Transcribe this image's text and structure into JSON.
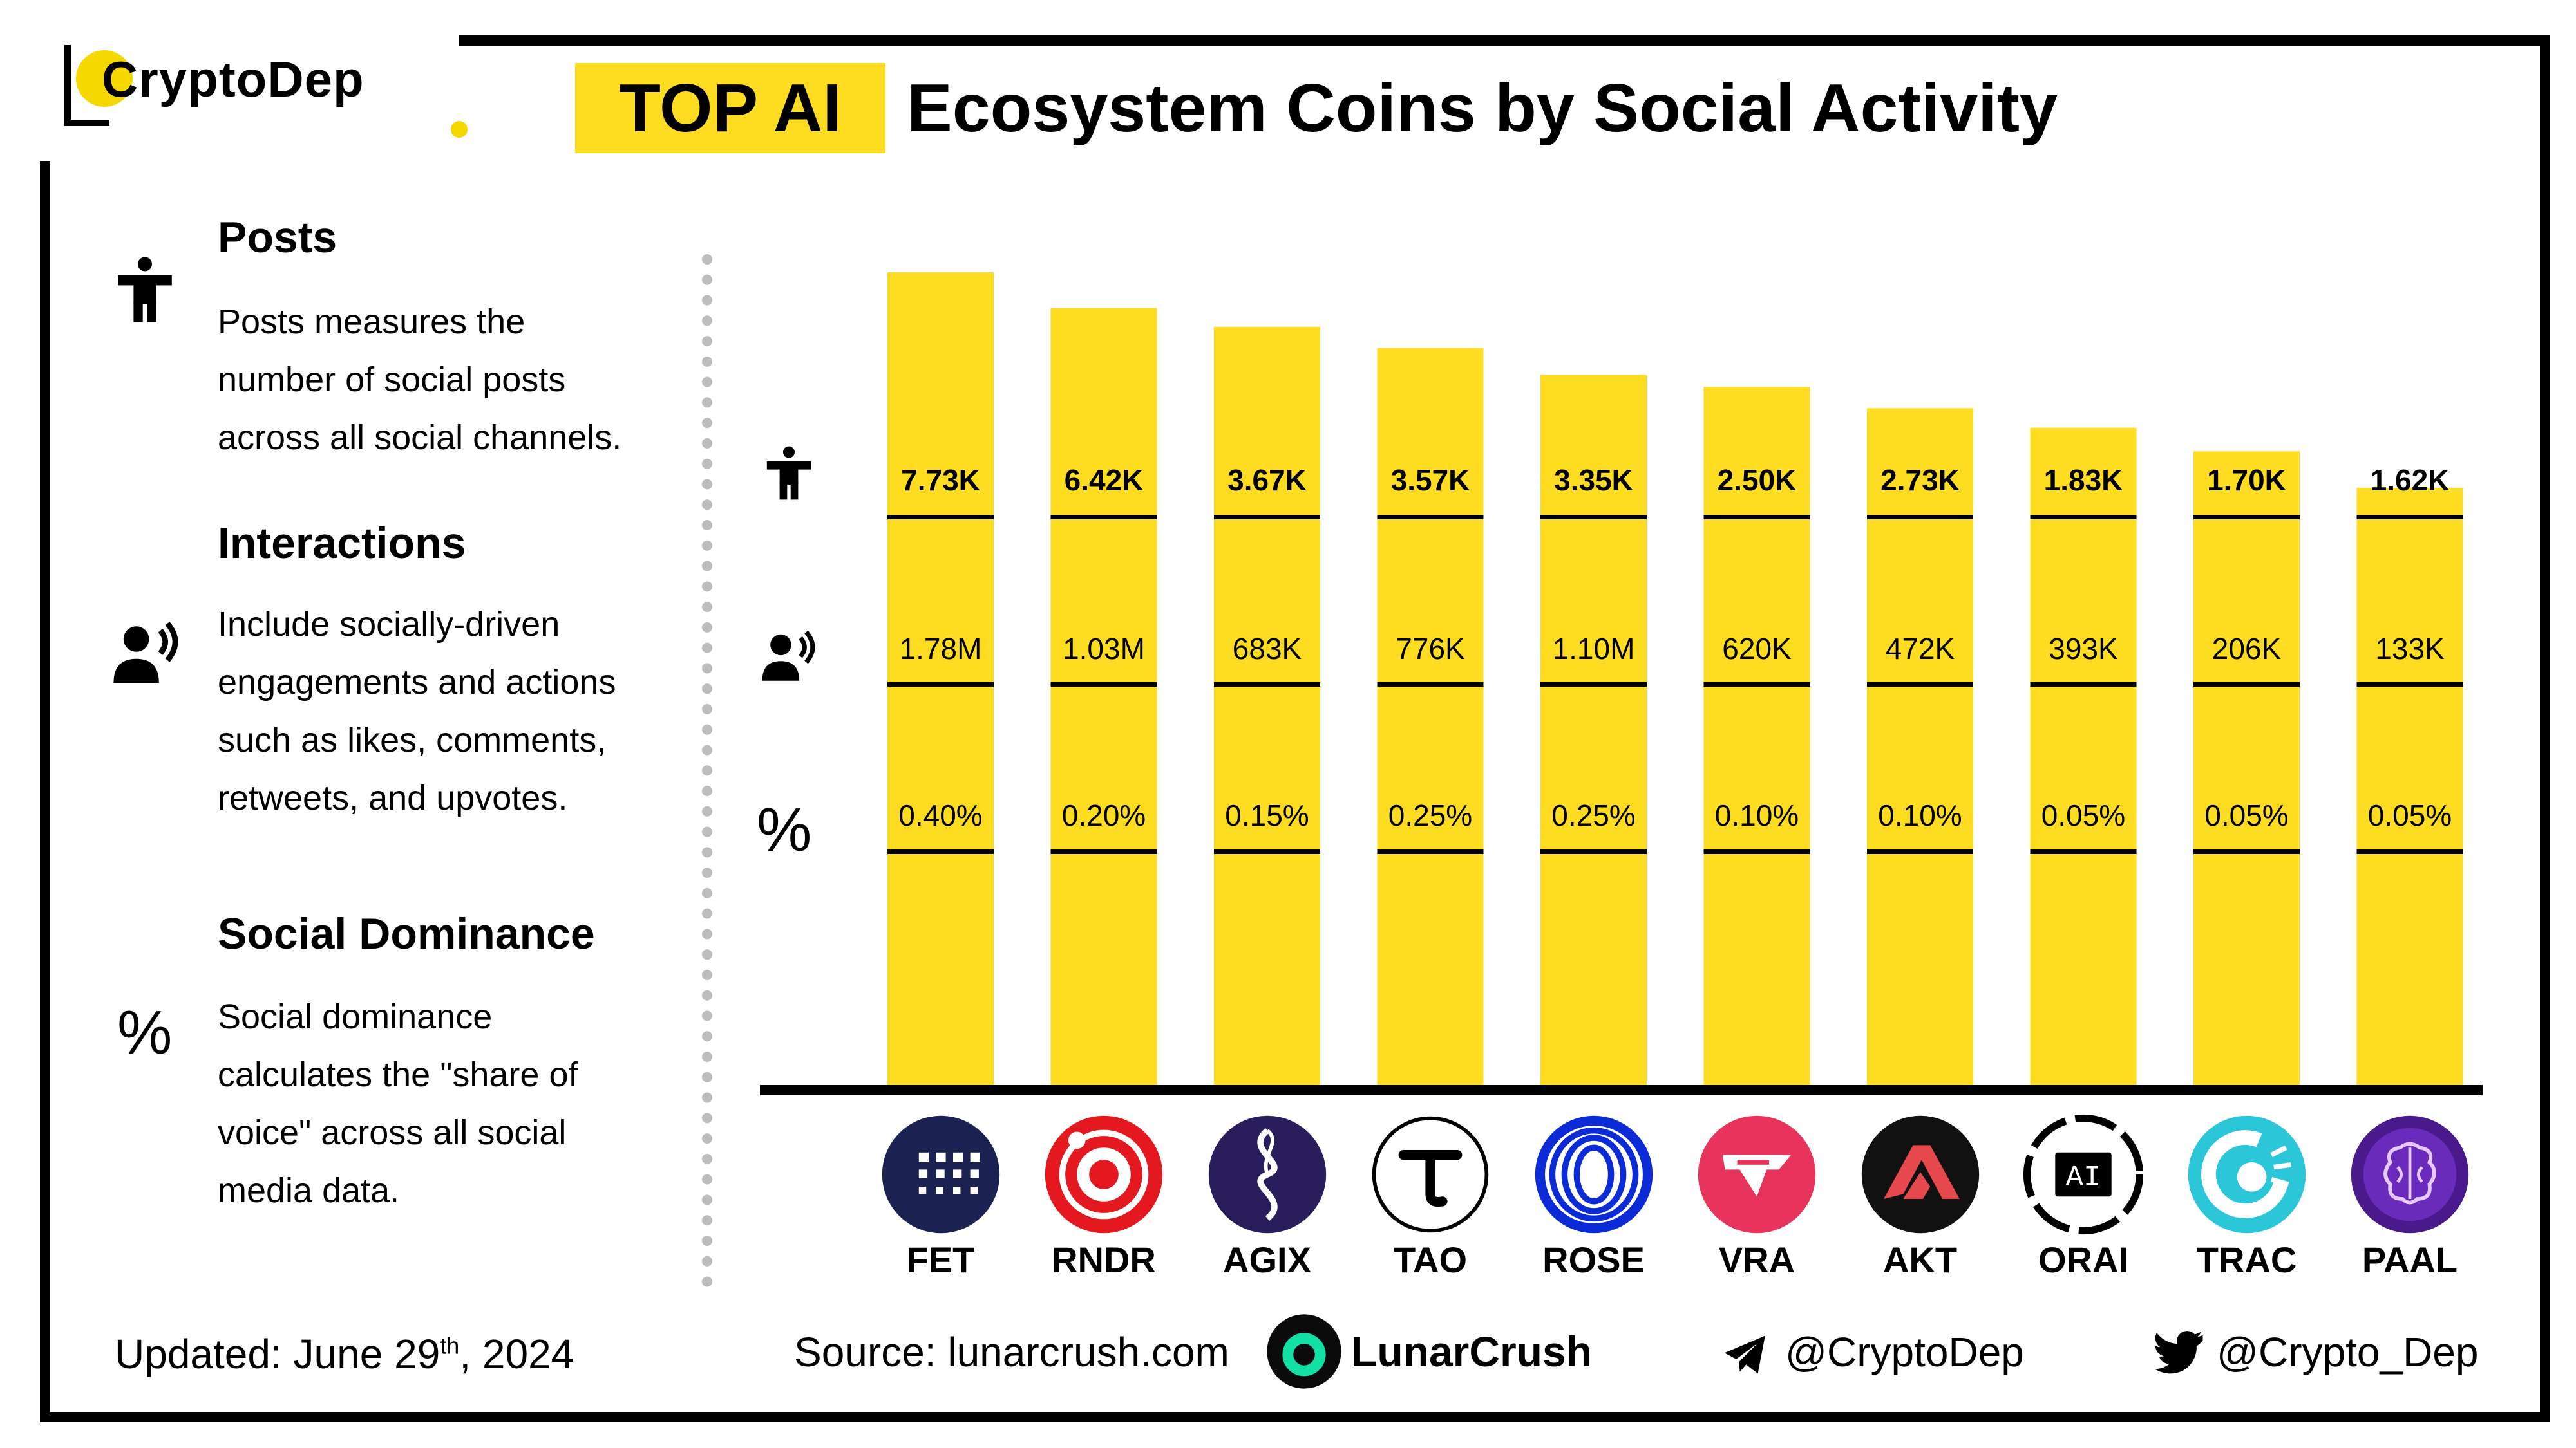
{
  "brand": {
    "name": "CryptoDep"
  },
  "title": {
    "highlight": "TOP AI",
    "rest": "Ecosystem Coins by Social Activity"
  },
  "legend": [
    {
      "heading": "Posts",
      "icon": "person-icon",
      "lines": [
        "Posts measures the",
        "number of social posts",
        "across all social channels."
      ]
    },
    {
      "heading": "Interactions",
      "icon": "speaking-person-icon",
      "lines": [
        "Include socially-driven",
        "engagements and actions",
        "such as likes, comments,",
        "retweets, and upvotes."
      ]
    },
    {
      "heading": "Social Dominance",
      "icon": "percent-icon",
      "lines": [
        "Social dominance",
        "calculates the \"share of",
        "voice\" across all social",
        "media data."
      ]
    }
  ],
  "row_icons": {
    "posts": "person-icon",
    "interactions": "speaking-person-icon",
    "dominance": "%"
  },
  "chart_data": {
    "type": "bar",
    "title": "TOP AI Ecosystem Coins by Social Activity",
    "categories": [
      "FET",
      "RNDR",
      "AGIX",
      "TAO",
      "ROSE",
      "VRA",
      "AKT",
      "ORAI",
      "TRAC",
      "PAAL"
    ],
    "series": [
      {
        "name": "Posts",
        "values": [
          7730,
          6420,
          3670,
          3570,
          3350,
          2500,
          2730,
          1830,
          1700,
          1620
        ],
        "labels": [
          "7.73K",
          "6.42K",
          "3.67K",
          "3.57K",
          "3.35K",
          "2.50K",
          "2.73K",
          "1.83K",
          "1.70K",
          "1.62K"
        ]
      },
      {
        "name": "Interactions",
        "values": [
          1780000,
          1030000,
          683000,
          776000,
          1100000,
          620000,
          472000,
          393000,
          206000,
          133000
        ],
        "labels": [
          "1.78M",
          "1.03M",
          "683K",
          "776K",
          "1.10M",
          "620K",
          "472K",
          "393K",
          "206K",
          "133K"
        ]
      },
      {
        "name": "Social Dominance",
        "values": [
          0.4,
          0.2,
          0.15,
          0.25,
          0.25,
          0.1,
          0.1,
          0.05,
          0.05,
          0.05
        ],
        "labels": [
          "0.40%",
          "0.20%",
          "0.15%",
          "0.25%",
          "0.25%",
          "0.10%",
          "0.10%",
          "0.05%",
          "0.05%",
          "0.05%"
        ]
      }
    ],
    "bar_heights_index": [
      1.0,
      0.956,
      0.933,
      0.907,
      0.874,
      0.859,
      0.833,
      0.809,
      0.78,
      0.735
    ],
    "bar_color": "#fddc22",
    "xlabel": "",
    "ylabel": "",
    "legend": "left-panel"
  },
  "coins": [
    {
      "ticker": "FET",
      "color": "#1b2150",
      "icon": "fetch-grid-icon"
    },
    {
      "ticker": "RNDR",
      "color": "#e3191f",
      "icon": "render-ring-icon"
    },
    {
      "ticker": "AGIX",
      "color": "#2a1d5c",
      "icon": "singularity-icon"
    },
    {
      "ticker": "TAO",
      "color": "#ffffff",
      "icon": "bittensor-tau-icon"
    },
    {
      "ticker": "ROSE",
      "color": "#0a2bd6",
      "icon": "oasis-rings-icon"
    },
    {
      "ticker": "VRA",
      "color": "#e8345a",
      "icon": "verasity-v-icon"
    },
    {
      "ticker": "AKT",
      "color": "#111111",
      "icon": "akash-triangle-icon"
    },
    {
      "ticker": "ORAI",
      "color": "#ffffff",
      "icon": "oraichain-ai-icon",
      "glyph": "AI"
    },
    {
      "ticker": "TRAC",
      "color": "#2bc7d9",
      "icon": "origintrail-icon"
    },
    {
      "ticker": "PAAL",
      "color": "#4a1a8c",
      "icon": "paal-brain-icon"
    }
  ],
  "footer": {
    "updated_label": "Updated:",
    "updated_month_day": "June 29",
    "updated_suffix": "th",
    "updated_year": ", 2024",
    "source_label": "Source:",
    "source_value": "lunarcrush.com",
    "partner": "LunarCrush",
    "telegram": "@CryptoDep",
    "twitter": "@Crypto_Dep"
  }
}
